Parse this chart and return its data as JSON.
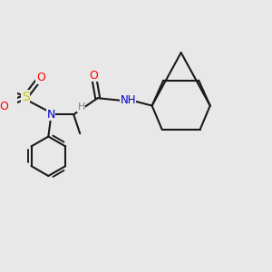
{
  "bg_color": "#e8e8e8",
  "bond_color": "#1a1a1a",
  "line_width": 1.5,
  "atom_colors": {
    "O": "#ff0000",
    "N": "#0000cd",
    "S": "#cccc00",
    "H_text": "#708090",
    "C": "#1a1a1a"
  },
  "figsize": [
    3.0,
    3.0
  ],
  "dpi": 100
}
